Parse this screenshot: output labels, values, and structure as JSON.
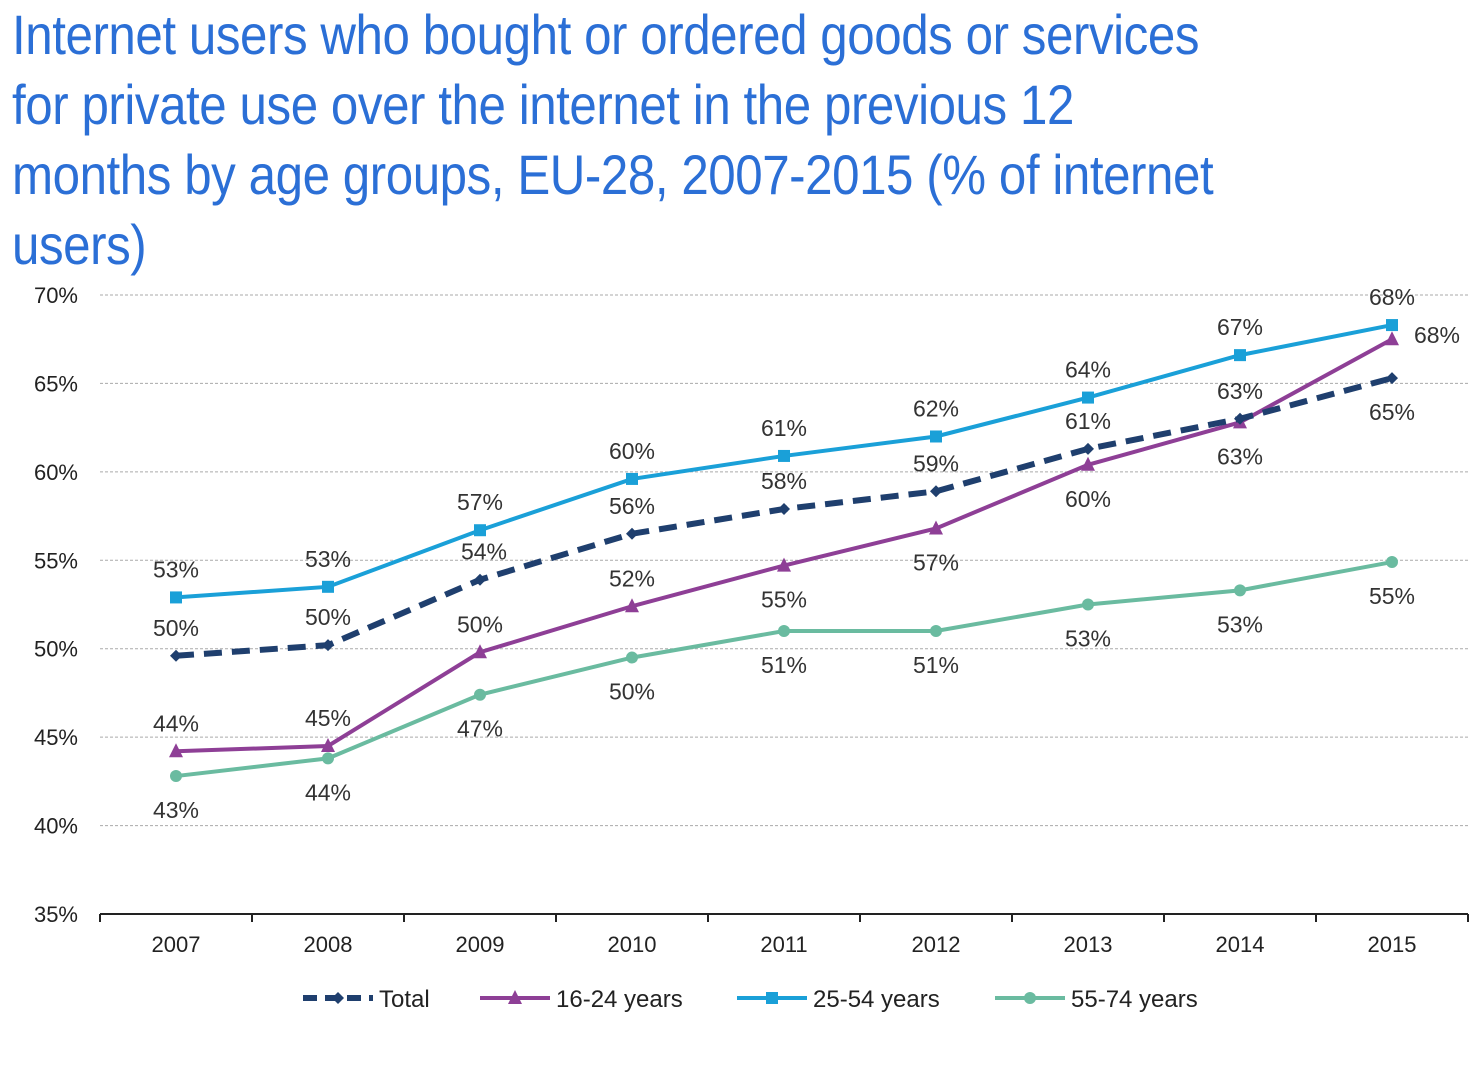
{
  "chart_data": {
    "type": "line",
    "title": "Internet users who bought or ordered goods or services for private use over the internet in the previous 12 months by age groups, EU-28, 2007-2015 (% of internet users)",
    "xlabel": "",
    "ylabel": "",
    "categories": [
      "2007",
      "2008",
      "2009",
      "2010",
      "2011",
      "2012",
      "2013",
      "2014",
      "2015"
    ],
    "ylim": [
      35,
      70
    ],
    "yticks": [
      70,
      65,
      60,
      55,
      50,
      45,
      40,
      35
    ],
    "ytick_labels": [
      "70%",
      "65%",
      "60%",
      "55%",
      "50%",
      "45%",
      "40%",
      "35%"
    ],
    "grid": true,
    "legend": "bottom",
    "series": [
      {
        "name": "Total",
        "color": "#1f3f6e",
        "style": "dashed",
        "marker": "diamond",
        "values": [
          49.6,
          50.2,
          53.9,
          56.5,
          57.9,
          58.9,
          61.3,
          63.0,
          65.3
        ],
        "labels": [
          "50%",
          "50%",
          "54%",
          "56%",
          "58%",
          "59%",
          "61%",
          "63%",
          "65%"
        ]
      },
      {
        "name": "16-24 years",
        "color": "#8e3f96",
        "style": "solid",
        "marker": "triangle",
        "values": [
          44.2,
          44.5,
          49.8,
          52.4,
          54.7,
          56.8,
          60.4,
          62.8,
          67.5
        ],
        "labels": [
          "44%",
          "45%",
          "50%",
          "52%",
          "55%",
          "57%",
          "60%",
          "63%",
          "68%"
        ]
      },
      {
        "name": "25-54 years",
        "color": "#1aa0d8",
        "style": "solid",
        "marker": "square",
        "values": [
          52.9,
          53.5,
          56.7,
          59.6,
          60.9,
          62.0,
          64.2,
          66.6,
          68.3
        ],
        "labels": [
          "53%",
          "53%",
          "57%",
          "60%",
          "61%",
          "62%",
          "64%",
          "67%",
          "68%"
        ]
      },
      {
        "name": "55-74 years",
        "color": "#6abba0",
        "style": "solid",
        "marker": "circle",
        "values": [
          42.8,
          43.8,
          47.4,
          49.5,
          51.0,
          51.0,
          52.5,
          53.3,
          54.9
        ],
        "labels": [
          "43%",
          "44%",
          "47%",
          "50%",
          "51%",
          "51%",
          "53%",
          "53%",
          "55%"
        ]
      }
    ]
  }
}
